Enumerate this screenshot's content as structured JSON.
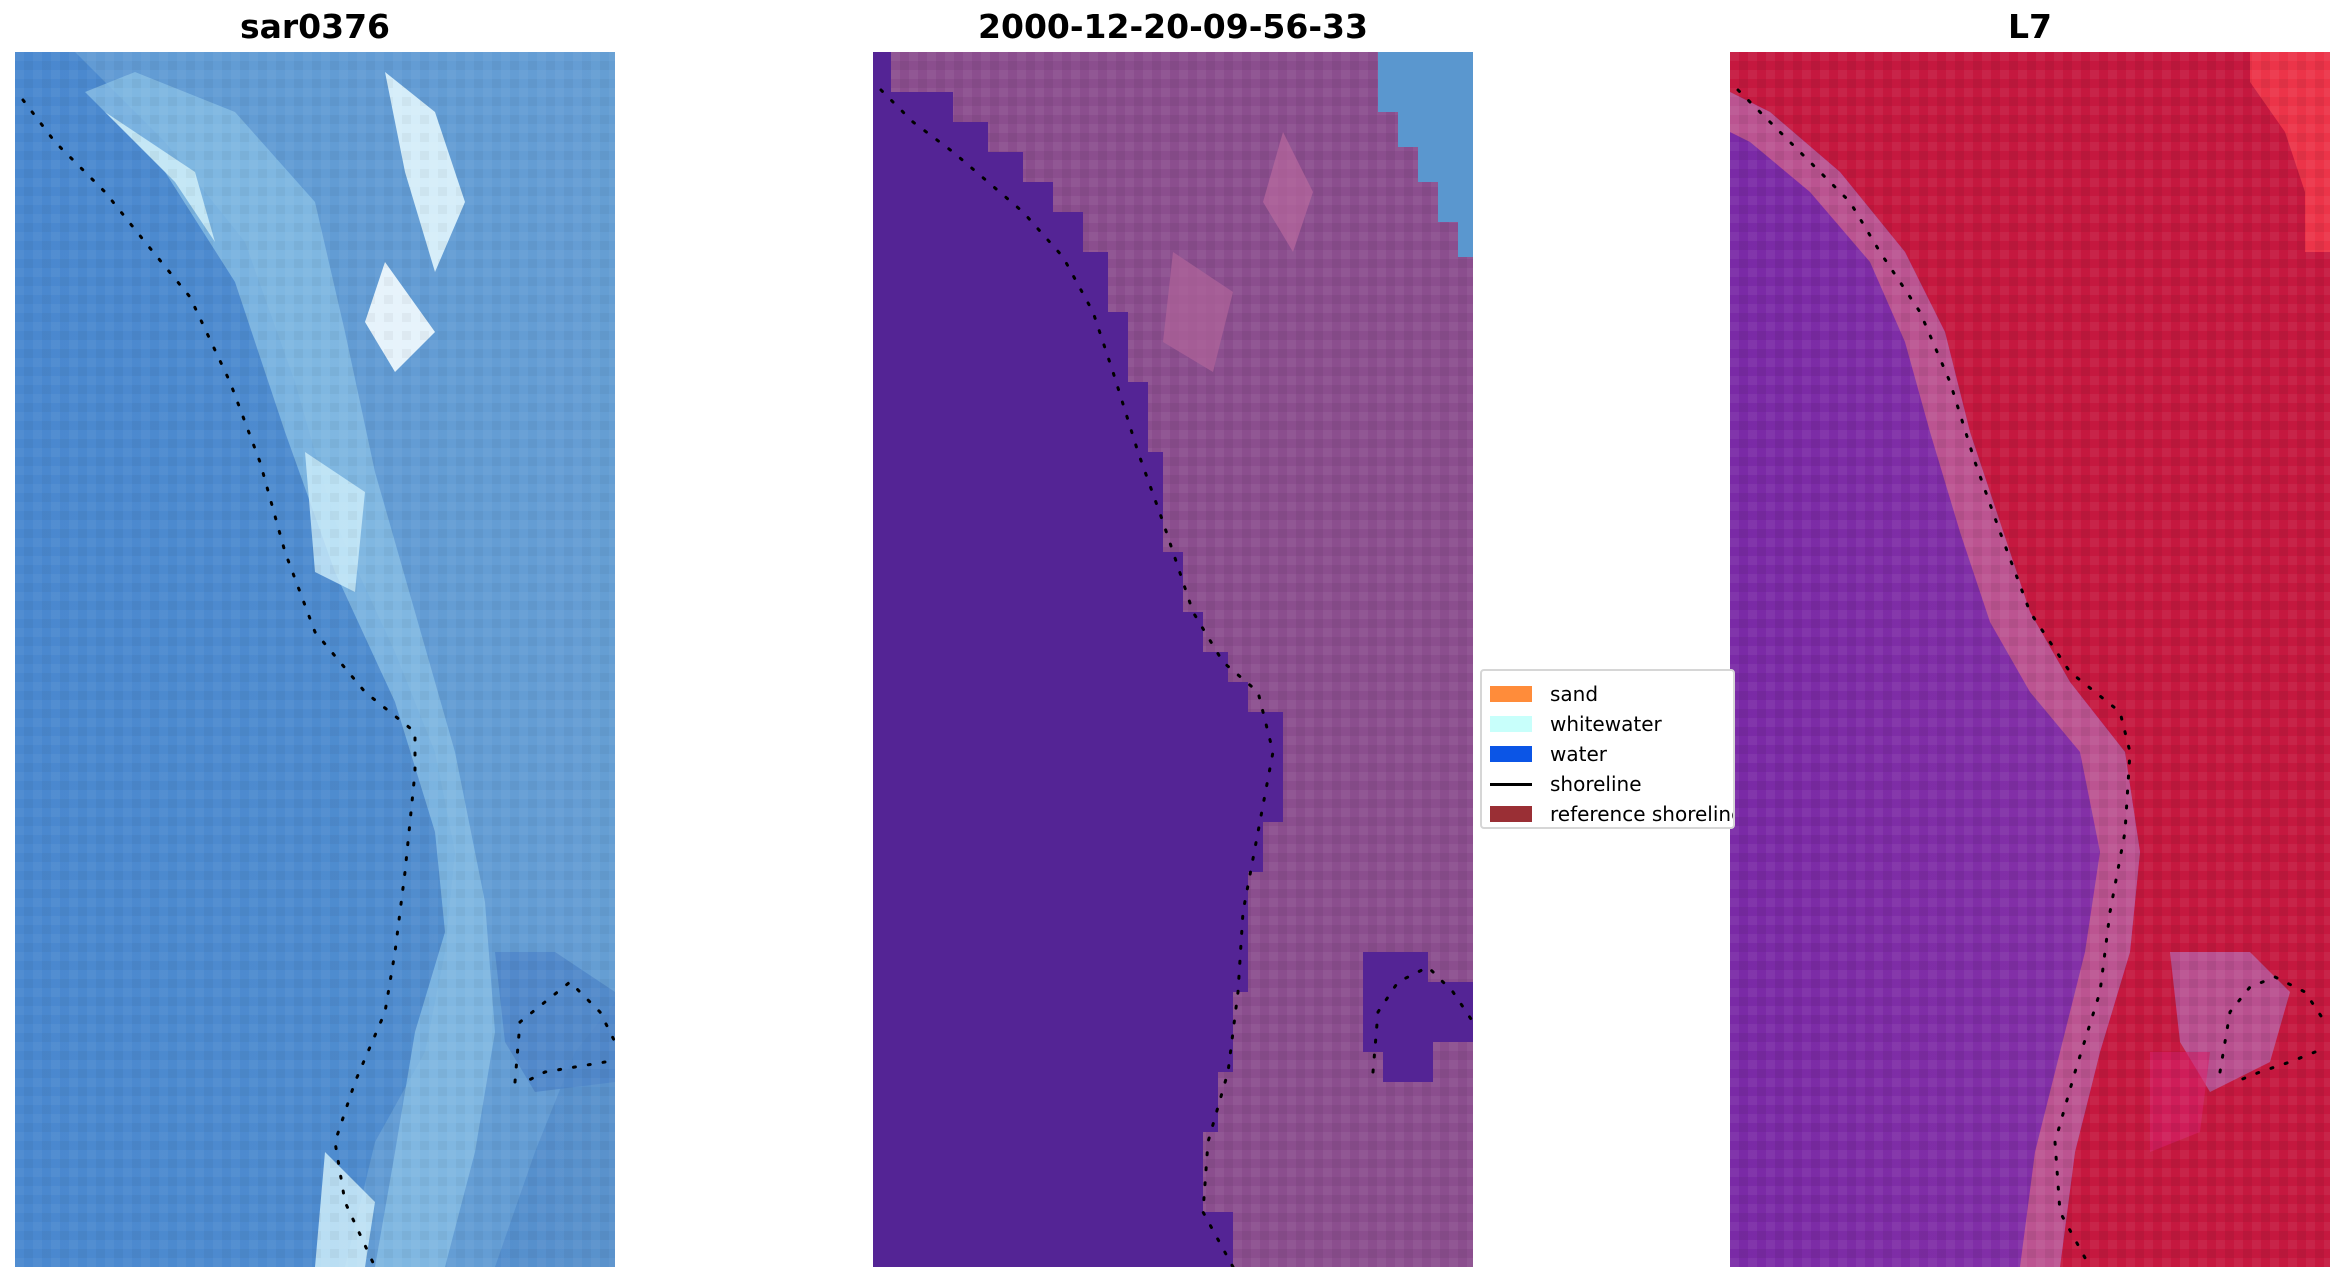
{
  "panels": [
    {
      "title": "sar0376"
    },
    {
      "title": "2000-12-20-09-56-33"
    },
    {
      "title": "L7"
    }
  ],
  "legend": {
    "items": [
      {
        "label": "sand",
        "color": "#ff8c3a",
        "kind": "patch"
      },
      {
        "label": "whitewater",
        "color": "#c8fffb",
        "kind": "patch"
      },
      {
        "label": "water",
        "color": "#0b55e6",
        "kind": "patch"
      },
      {
        "label": "shoreline",
        "color": "#000000",
        "kind": "line"
      },
      {
        "label": "reference shoreline",
        "color": "#9a2f35",
        "kind": "patch"
      }
    ]
  }
}
